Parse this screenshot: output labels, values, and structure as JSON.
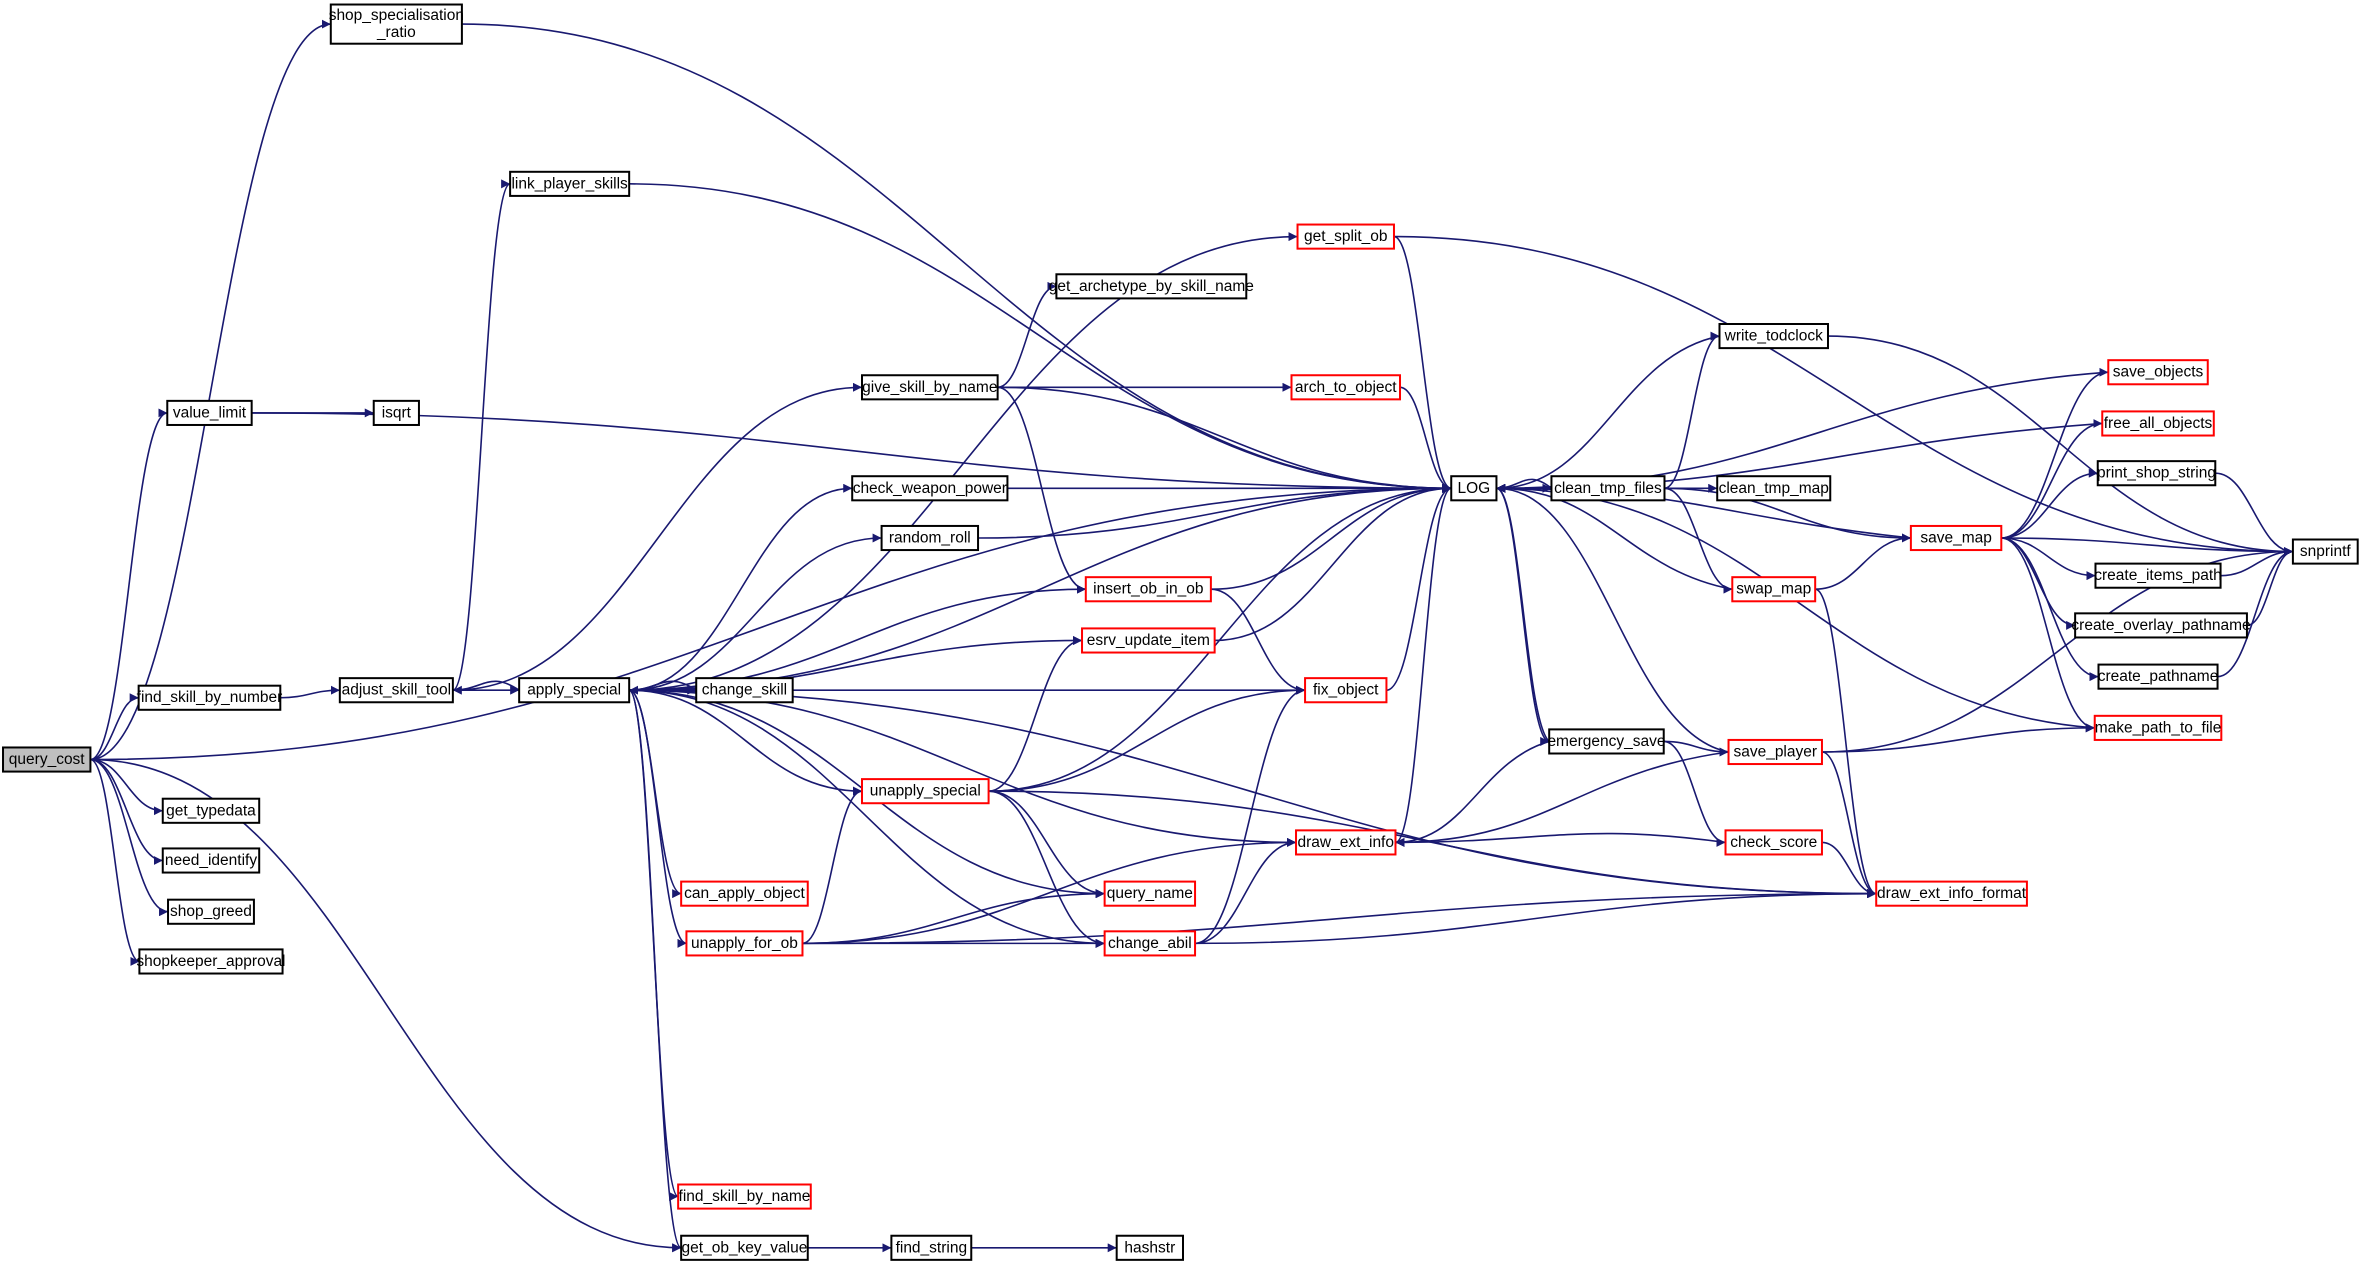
{
  "colors": {
    "edge": "#191970",
    "highlight_border": "#ff0000",
    "normal_border": "#000000",
    "root_fill": "#bfbfbf"
  },
  "nodes": [
    {
      "id": "query_cost",
      "label": "query_cost",
      "style": "root"
    },
    {
      "id": "shop_specialisation_ratio",
      "label": "shop_specialisation_ratio",
      "lines": [
        "shop_specialisation",
        "_ratio"
      ],
      "style": "normal"
    },
    {
      "id": "link_player_skills",
      "label": "link_player_skills",
      "style": "normal"
    },
    {
      "id": "value_limit",
      "label": "value_limit",
      "style": "normal"
    },
    {
      "id": "isqrt",
      "label": "isqrt",
      "style": "normal"
    },
    {
      "id": "find_skill_by_number",
      "label": "find_skill_by_number",
      "style": "normal"
    },
    {
      "id": "adjust_skill_tool",
      "label": "adjust_skill_tool",
      "style": "normal"
    },
    {
      "id": "apply_special",
      "label": "apply_special",
      "style": "normal"
    },
    {
      "id": "change_skill",
      "label": "change_skill",
      "style": "normal"
    },
    {
      "id": "get_typedata",
      "label": "get_typedata",
      "style": "normal"
    },
    {
      "id": "need_identify",
      "label": "need_identify",
      "style": "normal"
    },
    {
      "id": "shop_greed",
      "label": "shop_greed",
      "style": "normal"
    },
    {
      "id": "shopkeeper_approval",
      "label": "shopkeeper_approval",
      "style": "normal"
    },
    {
      "id": "get_split_ob",
      "label": "get_split_ob",
      "style": "red"
    },
    {
      "id": "get_archetype_by_skill_name",
      "label": "get_archetype_by_skill_name",
      "style": "normal"
    },
    {
      "id": "give_skill_by_name",
      "label": "give_skill_by_name",
      "style": "normal"
    },
    {
      "id": "arch_to_object",
      "label": "arch_to_object",
      "style": "red"
    },
    {
      "id": "check_weapon_power",
      "label": "check_weapon_power",
      "style": "normal"
    },
    {
      "id": "random_roll",
      "label": "random_roll",
      "style": "normal"
    },
    {
      "id": "insert_ob_in_ob",
      "label": "insert_ob_in_ob",
      "style": "red"
    },
    {
      "id": "esrv_update_item",
      "label": "esrv_update_item",
      "style": "red"
    },
    {
      "id": "fix_object",
      "label": "fix_object",
      "style": "red"
    },
    {
      "id": "unapply_special",
      "label": "unapply_special",
      "style": "red"
    },
    {
      "id": "can_apply_object",
      "label": "can_apply_object",
      "style": "red"
    },
    {
      "id": "unapply_for_ob",
      "label": "unapply_for_ob",
      "style": "red"
    },
    {
      "id": "query_name",
      "label": "query_name",
      "style": "red"
    },
    {
      "id": "change_abil",
      "label": "change_abil",
      "style": "red"
    },
    {
      "id": "draw_ext_info",
      "label": "draw_ext_info",
      "style": "red"
    },
    {
      "id": "find_skill_by_name",
      "label": "find_skill_by_name",
      "style": "red"
    },
    {
      "id": "get_ob_key_value",
      "label": "get_ob_key_value",
      "style": "normal"
    },
    {
      "id": "find_string",
      "label": "find_string",
      "style": "normal"
    },
    {
      "id": "hashstr",
      "label": "hashstr",
      "style": "normal"
    },
    {
      "id": "LOG",
      "label": "LOG",
      "style": "normal"
    },
    {
      "id": "clean_tmp_files",
      "label": "clean_tmp_files",
      "style": "normal"
    },
    {
      "id": "clean_tmp_map",
      "label": "clean_tmp_map",
      "style": "normal"
    },
    {
      "id": "write_todclock",
      "label": "write_todclock",
      "style": "normal"
    },
    {
      "id": "swap_map",
      "label": "swap_map",
      "style": "red"
    },
    {
      "id": "emergency_save",
      "label": "emergency_save",
      "style": "normal"
    },
    {
      "id": "save_player",
      "label": "save_player",
      "style": "red"
    },
    {
      "id": "check_score",
      "label": "check_score",
      "style": "red"
    },
    {
      "id": "save_map",
      "label": "save_map",
      "style": "red"
    },
    {
      "id": "draw_ext_info_format",
      "label": "draw_ext_info_format",
      "style": "red"
    },
    {
      "id": "save_objects",
      "label": "save_objects",
      "style": "red"
    },
    {
      "id": "free_all_objects",
      "label": "free_all_objects",
      "style": "red"
    },
    {
      "id": "print_shop_string",
      "label": "print_shop_string",
      "style": "normal"
    },
    {
      "id": "create_items_path",
      "label": "create_items_path",
      "style": "normal"
    },
    {
      "id": "create_overlay_pathname",
      "label": "create_overlay_pathname",
      "style": "normal"
    },
    {
      "id": "create_pathname",
      "label": "create_pathname",
      "style": "normal"
    },
    {
      "id": "make_path_to_file",
      "label": "make_path_to_file",
      "style": "red"
    },
    {
      "id": "snprintf",
      "label": "snprintf",
      "style": "normal"
    }
  ],
  "edges": [
    [
      "query_cost",
      "shop_specialisation_ratio"
    ],
    [
      "query_cost",
      "LOG"
    ],
    [
      "query_cost",
      "value_limit"
    ],
    [
      "query_cost",
      "find_skill_by_number"
    ],
    [
      "query_cost",
      "get_typedata"
    ],
    [
      "query_cost",
      "need_identify"
    ],
    [
      "query_cost",
      "shop_greed"
    ],
    [
      "query_cost",
      "shopkeeper_approval"
    ],
    [
      "query_cost",
      "get_ob_key_value"
    ],
    [
      "shop_specialisation_ratio",
      "LOG"
    ],
    [
      "value_limit",
      "LOG"
    ],
    [
      "value_limit",
      "isqrt"
    ],
    [
      "find_skill_by_number",
      "adjust_skill_tool"
    ],
    [
      "adjust_skill_tool",
      "link_player_skills"
    ],
    [
      "adjust_skill_tool",
      "give_skill_by_name"
    ],
    [
      "adjust_skill_tool",
      "apply_special"
    ],
    [
      "link_player_skills",
      "LOG"
    ],
    [
      "apply_special",
      "get_split_ob"
    ],
    [
      "apply_special",
      "LOG"
    ],
    [
      "apply_special",
      "check_weapon_power"
    ],
    [
      "apply_special",
      "random_roll"
    ],
    [
      "apply_special",
      "insert_ob_in_ob"
    ],
    [
      "apply_special",
      "esrv_update_item"
    ],
    [
      "apply_special",
      "change_skill"
    ],
    [
      "apply_special",
      "fix_object"
    ],
    [
      "apply_special",
      "unapply_special"
    ],
    [
      "apply_special",
      "can_apply_object"
    ],
    [
      "apply_special",
      "unapply_for_ob"
    ],
    [
      "apply_special",
      "query_name"
    ],
    [
      "apply_special",
      "change_abil"
    ],
    [
      "apply_special",
      "draw_ext_info"
    ],
    [
      "apply_special",
      "draw_ext_info_format"
    ],
    [
      "apply_special",
      "find_skill_by_name"
    ],
    [
      "apply_special",
      "get_ob_key_value"
    ],
    [
      "apply_special",
      "adjust_skill_tool"
    ],
    [
      "change_skill",
      "apply_special"
    ],
    [
      "get_split_ob",
      "LOG"
    ],
    [
      "get_split_ob",
      "snprintf"
    ],
    [
      "give_skill_by_name",
      "get_archetype_by_skill_name"
    ],
    [
      "give_skill_by_name",
      "LOG"
    ],
    [
      "give_skill_by_name",
      "arch_to_object"
    ],
    [
      "give_skill_by_name",
      "insert_ob_in_ob"
    ],
    [
      "arch_to_object",
      "LOG"
    ],
    [
      "check_weapon_power",
      "LOG"
    ],
    [
      "random_roll",
      "LOG"
    ],
    [
      "insert_ob_in_ob",
      "LOG"
    ],
    [
      "insert_ob_in_ob",
      "fix_object"
    ],
    [
      "esrv_update_item",
      "LOG"
    ],
    [
      "fix_object",
      "LOG"
    ],
    [
      "unapply_special",
      "esrv_update_item"
    ],
    [
      "unapply_special",
      "fix_object"
    ],
    [
      "unapply_special",
      "LOG"
    ],
    [
      "unapply_special",
      "query_name"
    ],
    [
      "unapply_special",
      "change_abil"
    ],
    [
      "unapply_special",
      "draw_ext_info_format"
    ],
    [
      "unapply_for_ob",
      "unapply_special"
    ],
    [
      "unapply_for_ob",
      "query_name"
    ],
    [
      "unapply_for_ob",
      "change_abil"
    ],
    [
      "unapply_for_ob",
      "draw_ext_info"
    ],
    [
      "unapply_for_ob",
      "draw_ext_info_format"
    ],
    [
      "change_abil",
      "fix_object"
    ],
    [
      "change_abil",
      "draw_ext_info"
    ],
    [
      "change_abil",
      "draw_ext_info_format"
    ],
    [
      "draw_ext_info",
      "LOG"
    ],
    [
      "get_ob_key_value",
      "find_string"
    ],
    [
      "find_string",
      "hashstr"
    ],
    [
      "LOG",
      "clean_tmp_files"
    ],
    [
      "LOG",
      "emergency_save"
    ],
    [
      "clean_tmp_files",
      "LOG"
    ],
    [
      "clean_tmp_files",
      "clean_tmp_map"
    ],
    [
      "clean_tmp_files",
      "write_todclock"
    ],
    [
      "clean_tmp_files",
      "save_map"
    ],
    [
      "clean_tmp_files",
      "swap_map"
    ],
    [
      "write_todclock",
      "LOG"
    ],
    [
      "write_todclock",
      "snprintf"
    ],
    [
      "swap_map",
      "LOG"
    ],
    [
      "swap_map",
      "save_map"
    ],
    [
      "swap_map",
      "draw_ext_info_format"
    ],
    [
      "save_map",
      "LOG"
    ],
    [
      "save_map",
      "save_objects"
    ],
    [
      "save_map",
      "free_all_objects"
    ],
    [
      "save_map",
      "print_shop_string"
    ],
    [
      "save_map",
      "snprintf"
    ],
    [
      "save_map",
      "create_items_path"
    ],
    [
      "save_map",
      "create_overlay_pathname"
    ],
    [
      "save_map",
      "create_pathname"
    ],
    [
      "save_map",
      "make_path_to_file"
    ],
    [
      "save_objects",
      "LOG"
    ],
    [
      "free_all_objects",
      "LOG"
    ],
    [
      "print_shop_string",
      "snprintf"
    ],
    [
      "create_items_path",
      "snprintf"
    ],
    [
      "create_overlay_pathname",
      "snprintf"
    ],
    [
      "create_pathname",
      "snprintf"
    ],
    [
      "make_path_to_file",
      "LOG"
    ],
    [
      "emergency_save",
      "save_player"
    ],
    [
      "emergency_save",
      "check_score"
    ],
    [
      "emergency_save",
      "draw_ext_info"
    ],
    [
      "emergency_save",
      "LOG"
    ],
    [
      "save_player",
      "LOG"
    ],
    [
      "save_player",
      "make_path_to_file"
    ],
    [
      "save_player",
      "draw_ext_info"
    ],
    [
      "save_player",
      "draw_ext_info_format"
    ],
    [
      "save_player",
      "snprintf"
    ],
    [
      "check_score",
      "draw_ext_info"
    ],
    [
      "check_score",
      "draw_ext_info_format"
    ]
  ]
}
